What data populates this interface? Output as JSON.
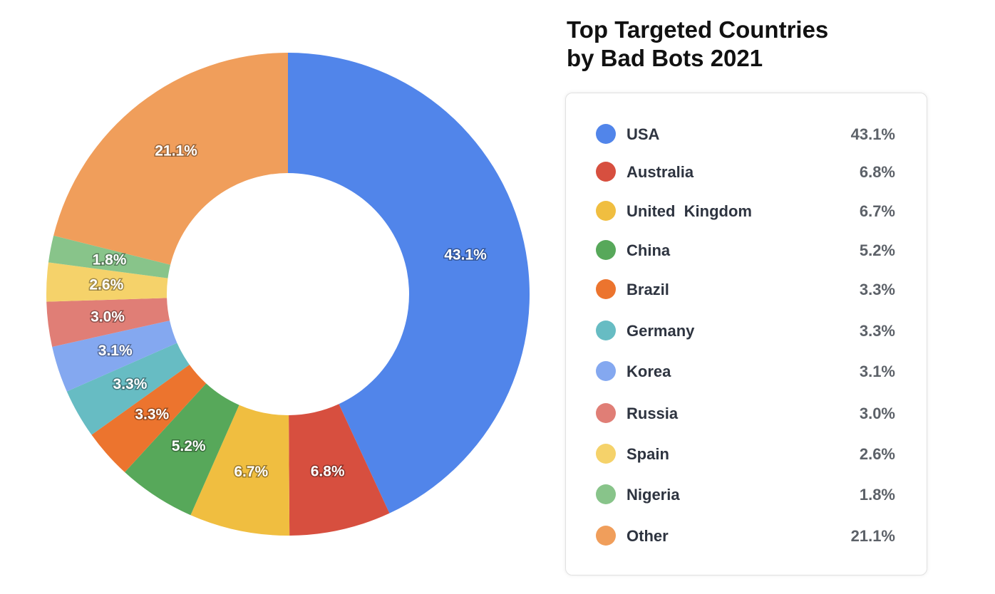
{
  "title": {
    "line1": "Top Targeted Countries",
    "line2": "by Bad Bots 2021"
  },
  "chart_data": {
    "type": "pie",
    "donut": true,
    "title": "Top Targeted Countries by Bad Bots 2021",
    "legend_placement": "right",
    "unit": "%",
    "slices": [
      {
        "label": "USA",
        "value": 43.1,
        "display": "43.1%",
        "color": "#5185EA"
      },
      {
        "label": "Australia",
        "value": 6.8,
        "display": "6.8%",
        "color": "#D74F3F"
      },
      {
        "label": "United  Kingdom",
        "value": 6.7,
        "display": "6.7%",
        "color": "#F0BE40"
      },
      {
        "label": "China",
        "value": 5.2,
        "display": "5.2%",
        "color": "#57A85A"
      },
      {
        "label": "Brazil",
        "value": 3.3,
        "display": "3.3%",
        "color": "#EC742E"
      },
      {
        "label": "Germany",
        "value": 3.3,
        "display": "3.3%",
        "color": "#67BCC3"
      },
      {
        "label": "Korea",
        "value": 3.1,
        "display": "3.1%",
        "color": "#84A8F0"
      },
      {
        "label": "Russia",
        "value": 3.0,
        "display": "3.0%",
        "color": "#E07E76"
      },
      {
        "label": "Spain",
        "value": 2.6,
        "display": "2.6%",
        "color": "#F5D26A"
      },
      {
        "label": "Nigeria",
        "value": 1.8,
        "display": "1.8%",
        "color": "#88C48A"
      },
      {
        "label": "Other",
        "value": 21.1,
        "display": "21.1%",
        "color": "#F09E5B"
      }
    ]
  }
}
